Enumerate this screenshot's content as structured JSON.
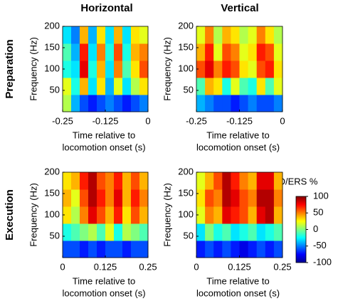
{
  "column_titles": [
    "Horizontal",
    "Vertical"
  ],
  "row_titles": [
    "Preparation",
    "Execution"
  ],
  "colorbar": {
    "title": "ERD/ERS %",
    "clim": [
      -100,
      100
    ],
    "ticks": [
      100,
      50,
      0,
      -50,
      -100
    ],
    "colormap": "jet"
  },
  "chart_data": [
    {
      "type": "heatmap",
      "ylabel": "Frequency (Hz)",
      "xlabel": [
        "Time relative to",
        "locomotion onset (s)"
      ],
      "xlim": [
        -0.25,
        0
      ],
      "xticks": [
        -0.25,
        -0.125,
        0
      ],
      "ylim": [
        0,
        200
      ],
      "yticks": [
        50,
        100,
        150,
        200
      ],
      "x": [
        -0.2375,
        -0.2125,
        -0.1875,
        -0.1625,
        -0.1375,
        -0.1125,
        -0.0875,
        -0.0625,
        -0.0375,
        -0.0125
      ],
      "y": [
        20,
        60,
        100,
        140,
        180
      ],
      "z": [
        [
          10,
          -40,
          -60,
          -70,
          -60,
          -50,
          -60,
          -70,
          -60,
          -50
        ],
        [
          20,
          -20,
          40,
          -30,
          30,
          -40,
          20,
          -30,
          10,
          30
        ],
        [
          -20,
          -30,
          80,
          -20,
          40,
          -30,
          50,
          -10,
          30,
          60
        ],
        [
          -10,
          -40,
          70,
          -30,
          50,
          -20,
          60,
          -20,
          40,
          50
        ],
        [
          -30,
          -50,
          40,
          -40,
          30,
          -30,
          40,
          -30,
          30,
          20
        ]
      ]
    },
    {
      "type": "heatmap",
      "ylabel": "Frequency (Hz)",
      "xlabel": [
        "Time relative to",
        "locomotion onset (s)"
      ],
      "xlim": [
        -0.25,
        0
      ],
      "xticks": [
        -0.25,
        -0.125,
        0
      ],
      "ylim": [
        0,
        200
      ],
      "yticks": [
        50,
        100,
        150,
        200
      ],
      "x": [
        -0.2375,
        -0.2125,
        -0.1875,
        -0.1625,
        -0.1375,
        -0.1125,
        -0.0875,
        -0.0625,
        -0.0375,
        -0.0125
      ],
      "y": [
        20,
        60,
        100,
        140,
        180
      ],
      "z": [
        [
          -40,
          -50,
          -60,
          -60,
          -70,
          -60,
          -50,
          -60,
          -60,
          -50
        ],
        [
          -10,
          40,
          30,
          -20,
          20,
          -10,
          -20,
          30,
          -10,
          20
        ],
        [
          60,
          80,
          50,
          70,
          60,
          30,
          20,
          60,
          70,
          30
        ],
        [
          40,
          70,
          20,
          60,
          50,
          20,
          30,
          70,
          60,
          20
        ],
        [
          20,
          50,
          10,
          40,
          30,
          10,
          20,
          50,
          30,
          10
        ]
      ]
    },
    {
      "type": "heatmap",
      "ylabel": "Frequency (Hz)",
      "xlabel": [
        "Time relative to",
        "locomotion onset (s)"
      ],
      "xlim": [
        0,
        0.25
      ],
      "xticks": [
        0,
        0.125,
        0.25
      ],
      "ylim": [
        0,
        200
      ],
      "yticks": [
        50,
        100,
        150,
        200
      ],
      "x": [
        0.0125,
        0.0375,
        0.0625,
        0.0875,
        0.1125,
        0.1375,
        0.1625,
        0.1875,
        0.2125,
        0.2375
      ],
      "y": [
        20,
        60,
        100,
        140,
        180
      ],
      "z": [
        [
          -60,
          -60,
          -70,
          -60,
          -70,
          -60,
          -60,
          -70,
          -60,
          -60
        ],
        [
          -20,
          -10,
          0,
          10,
          -10,
          20,
          -20,
          10,
          0,
          -10
        ],
        [
          30,
          10,
          50,
          80,
          60,
          40,
          70,
          30,
          60,
          40
        ],
        [
          40,
          20,
          60,
          90,
          70,
          50,
          80,
          40,
          70,
          50
        ],
        [
          30,
          40,
          70,
          90,
          60,
          50,
          70,
          40,
          60,
          40
        ]
      ]
    },
    {
      "type": "heatmap",
      "ylabel": "Frequency (Hz)",
      "xlabel": [
        "Time relative to",
        "locomotion onset (s)"
      ],
      "xlim": [
        0,
        0.25
      ],
      "xticks": [
        0,
        0.125,
        0.25
      ],
      "ylim": [
        0,
        200
      ],
      "yticks": [
        50,
        100,
        150,
        200
      ],
      "x": [
        0.0125,
        0.0375,
        0.0625,
        0.0875,
        0.1125,
        0.1375,
        0.1625,
        0.1875,
        0.2125,
        0.2375
      ],
      "y": [
        20,
        60,
        100,
        140,
        180
      ],
      "z": [
        [
          -70,
          -60,
          -70,
          -60,
          -70,
          -80,
          -70,
          -60,
          -70,
          -60
        ],
        [
          -30,
          0,
          -20,
          -10,
          -30,
          -20,
          -10,
          -30,
          -20,
          -10
        ],
        [
          20,
          50,
          40,
          80,
          70,
          60,
          40,
          80,
          90,
          40
        ],
        [
          30,
          60,
          50,
          90,
          80,
          60,
          50,
          90,
          90,
          50
        ],
        [
          20,
          40,
          60,
          90,
          70,
          50,
          40,
          80,
          80,
          40
        ]
      ]
    }
  ]
}
